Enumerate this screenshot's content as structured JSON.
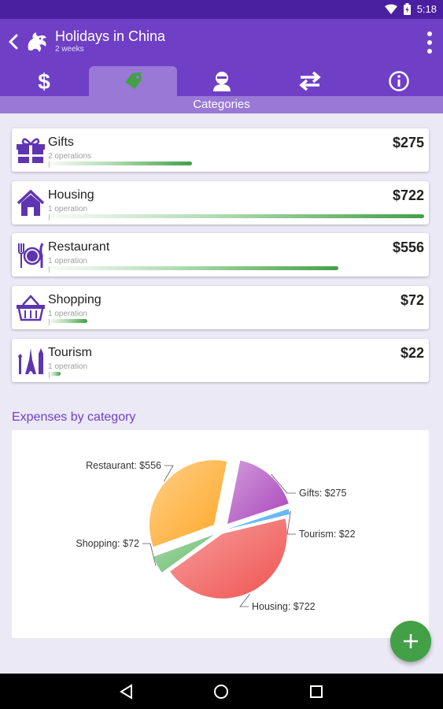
{
  "status_bar": {
    "time": "5:18"
  },
  "app_bar": {
    "title": "Holidays in China",
    "subtitle": "2 weeks"
  },
  "tabs": [
    {
      "name": "expenses",
      "icon": "dollar-icon"
    },
    {
      "name": "categories",
      "icon": "tag-icon",
      "active": true
    },
    {
      "name": "people",
      "icon": "person-icon"
    },
    {
      "name": "transfers",
      "icon": "transfer-arrows-icon"
    },
    {
      "name": "info",
      "icon": "info-icon"
    }
  ],
  "active_tab_label": "Categories",
  "categories": [
    {
      "name": "Gifts",
      "operations": "2 operations",
      "amount": "$275",
      "icon": "gift-icon",
      "share": 0.38
    },
    {
      "name": "Housing",
      "operations": "1 operation",
      "amount": "$722",
      "icon": "house-icon",
      "share": 1.0
    },
    {
      "name": "Restaurant",
      "operations": "1 operation",
      "amount": "$556",
      "icon": "plate-cutlery-icon",
      "share": 0.77
    },
    {
      "name": "Shopping",
      "operations": "1 operation",
      "amount": "$72",
      "icon": "shopping-basket-icon",
      "share": 0.1
    },
    {
      "name": "Tourism",
      "operations": "1 operation",
      "amount": "$22",
      "icon": "landmarks-icon",
      "share": 0.03
    }
  ],
  "chart_section_title": "Expenses by category",
  "chart_data": {
    "type": "pie",
    "slices": [
      {
        "label": "Restaurant: $556",
        "category": "Restaurant",
        "value": 556,
        "color": "#FFA726"
      },
      {
        "label": "Gifts: $275",
        "category": "Gifts",
        "value": 275,
        "color": "#AB47BC"
      },
      {
        "label": "Tourism: $22",
        "category": "Tourism",
        "value": 22,
        "color": "#42A5F5"
      },
      {
        "label": "Housing: $722",
        "category": "Housing",
        "value": 722,
        "color": "#EF5350"
      },
      {
        "label": "Shopping: $72",
        "category": "Shopping",
        "value": 72,
        "color": "#66BB6A"
      }
    ]
  },
  "fab": {
    "icon": "plus-icon"
  },
  "colors": {
    "primary": "#6F3FC6",
    "primary_dark": "#4A1FA0",
    "accent": "#43A047",
    "tab_active": "#9A78D6"
  }
}
